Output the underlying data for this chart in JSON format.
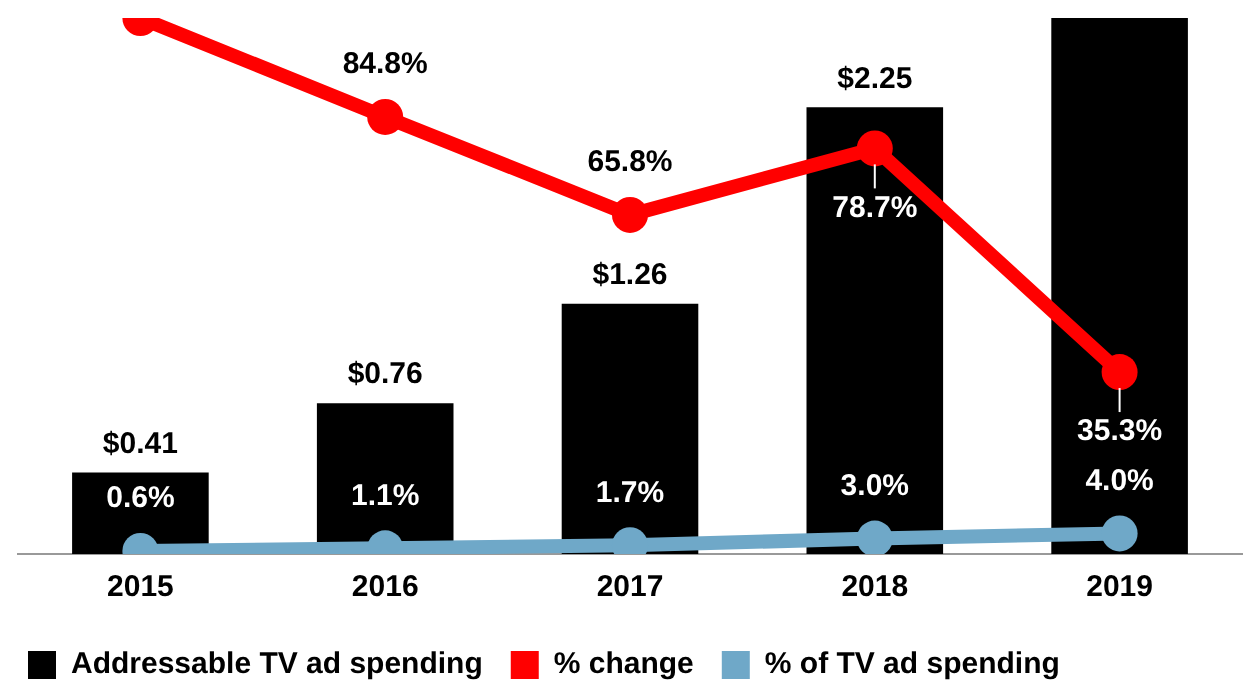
{
  "chart_data": {
    "type": "bar",
    "categories": [
      "2015",
      "2016",
      "2017",
      "2018",
      "2019"
    ],
    "series": [
      {
        "name": "Addressable TV ad spending",
        "color": "#000000",
        "values": [
          0.41,
          0.76,
          1.26,
          2.25,
          2.7
        ],
        "value_labels": [
          "$0.41",
          "$0.76",
          "$1.26",
          "$2.25",
          null
        ]
      },
      {
        "name": "% change",
        "type": "line",
        "axis": "y2",
        "color": "#ff0000",
        "values": [
          104,
          84.8,
          65.8,
          78.7,
          35.3
        ],
        "value_labels": [
          null,
          "84.8%",
          "65.8%",
          "78.7%",
          "35.3%"
        ]
      },
      {
        "name": "% of TV ad spending",
        "type": "line",
        "axis": "y2",
        "color": "#6fa8c8",
        "values": [
          0.6,
          1.1,
          1.7,
          3.0,
          4.0
        ],
        "value_labels": [
          "0.6%",
          "1.1%",
          "1.7%",
          "3.0%",
          "4.0%"
        ]
      }
    ],
    "ylim": [
      0,
      2.7
    ],
    "y2lim": [
      0,
      104
    ],
    "tick_labels": "x",
    "grid": false,
    "legend": "bottom",
    "marker": "circle",
    "line_style": "solid"
  }
}
